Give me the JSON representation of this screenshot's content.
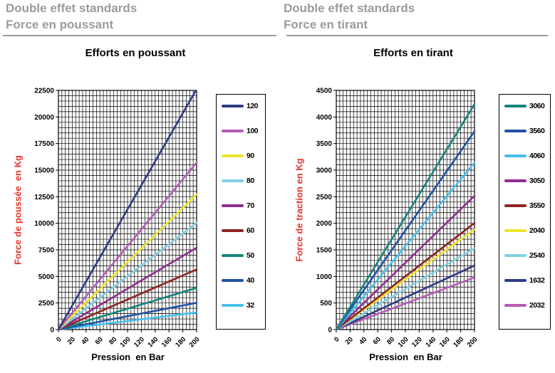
{
  "colors": {
    "header_gray": "#9b9b9b",
    "axis_title_red": "#e8332a",
    "grid_black": "#000000"
  },
  "chart_data": [
    {
      "type": "line",
      "header": [
        "Double effet standards",
        "Force en poussant"
      ],
      "title": "Efforts en poussant",
      "xlabel": "Pression  en Bar",
      "ylabel": "Force de poussée  en Kg",
      "xlim": [
        0,
        200
      ],
      "ylim": [
        0,
        22500
      ],
      "x_ticks": [
        0,
        20,
        40,
        60,
        80,
        100,
        120,
        140,
        160,
        180,
        200
      ],
      "y_ticks": [
        0,
        2500,
        5000,
        7500,
        10000,
        12500,
        15000,
        17500,
        20000,
        22500
      ],
      "minor_grid_step_x": 5,
      "minor_grid_step_y": 500,
      "grid": true,
      "legend_position": "right",
      "x": [
        0,
        200
      ],
      "series": [
        {
          "name": "120",
          "color": "#2e3a87",
          "kg_at_200_bar": 22620
        },
        {
          "name": "100",
          "color": "#b55cb5",
          "kg_at_200_bar": 15710
        },
        {
          "name": "90",
          "color": "#efe52e",
          "kg_at_200_bar": 12720
        },
        {
          "name": "80",
          "color": "#7fd0e2",
          "kg_at_200_bar": 10050
        },
        {
          "name": "70",
          "color": "#8e2d90",
          "kg_at_200_bar": 7700
        },
        {
          "name": "60",
          "color": "#8e2423",
          "kg_at_200_bar": 5655
        },
        {
          "name": "50",
          "color": "#17837a",
          "kg_at_200_bar": 3925
        },
        {
          "name": "40",
          "color": "#2152a5",
          "kg_at_200_bar": 2515
        },
        {
          "name": "32",
          "color": "#45c0ee",
          "kg_at_200_bar": 1610
        }
      ]
    },
    {
      "type": "line",
      "header": [
        "Double effet standards",
        "Force en tirant"
      ],
      "title": "Efforts en tirant",
      "xlabel": "Pression  en Bar",
      "ylabel": "Force de traction en Kg",
      "xlim": [
        0,
        200
      ],
      "ylim": [
        0,
        4500
      ],
      "x_ticks": [
        0,
        20,
        40,
        60,
        80,
        100,
        120,
        140,
        160,
        180,
        200
      ],
      "y_ticks": [
        0,
        500,
        1000,
        1500,
        2000,
        2500,
        3000,
        3500,
        4000,
        4500
      ],
      "minor_grid_step_x": 5,
      "minor_grid_step_y": 100,
      "grid": true,
      "legend_position": "right",
      "x": [
        0,
        200
      ],
      "series": [
        {
          "name": "3060",
          "color": "#17837a",
          "kg_at_200_bar": 4240
        },
        {
          "name": "3560",
          "color": "#2152a5",
          "kg_at_200_bar": 3730
        },
        {
          "name": "4060",
          "color": "#45c0ee",
          "kg_at_200_bar": 3140
        },
        {
          "name": "3050",
          "color": "#8e2d90",
          "kg_at_200_bar": 2515
        },
        {
          "name": "3550",
          "color": "#8e2423",
          "kg_at_200_bar": 2005
        },
        {
          "name": "2040",
          "color": "#efe52e",
          "kg_at_200_bar": 1885
        },
        {
          "name": "2540",
          "color": "#7fd0e2",
          "kg_at_200_bar": 1530
        },
        {
          "name": "1632",
          "color": "#2e3a87",
          "kg_at_200_bar": 1205
        },
        {
          "name": "2032",
          "color": "#b55cb5",
          "kg_at_200_bar": 980
        }
      ]
    }
  ]
}
